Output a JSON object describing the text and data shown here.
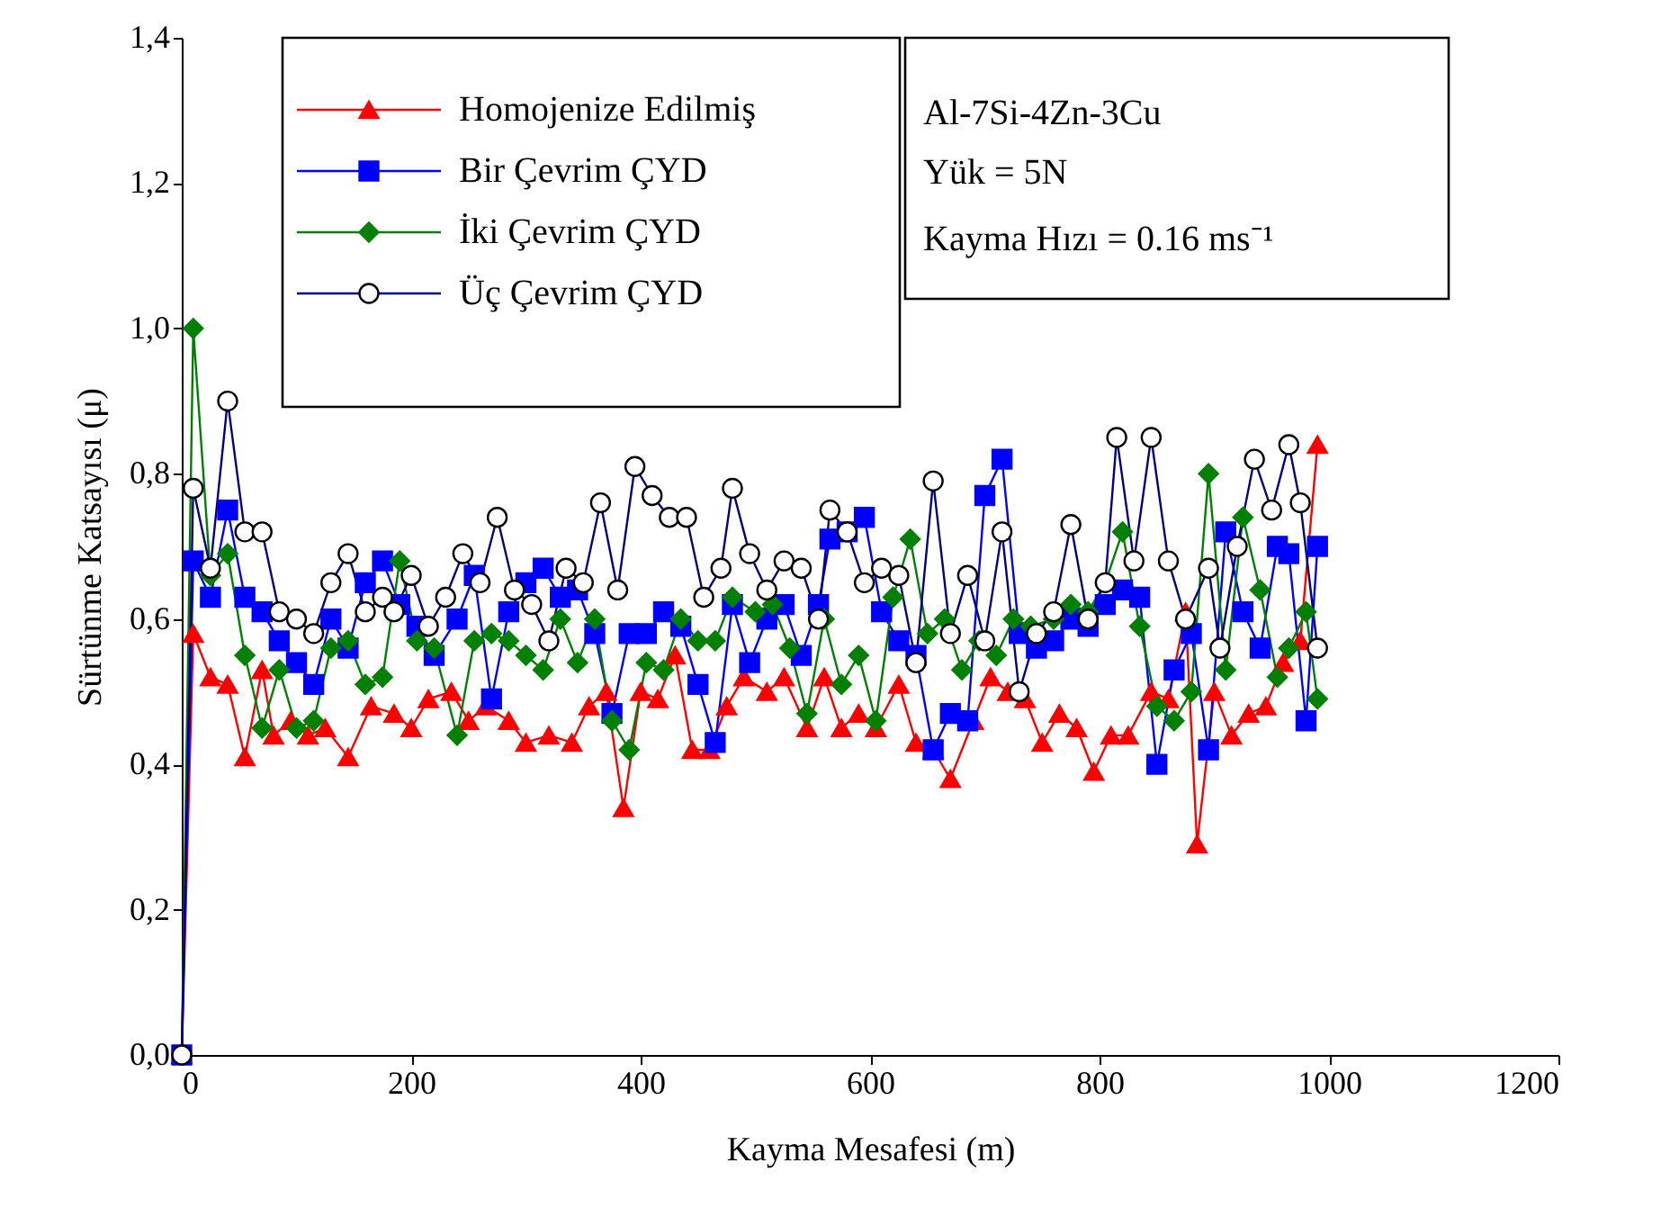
{
  "chart_data": {
    "type": "line",
    "xlabel": "Kayma Mesafesi (m)",
    "ylabel": "Sürtünme Katsayısı (μ)",
    "xlim": [
      0,
      1200
    ],
    "xticks": [
      0,
      200,
      400,
      600,
      800,
      {
        "value": 1000,
        "label": "1000"
      },
      {
        "value": 1200,
        "label": "1200"
      }
    ],
    "ylim": [
      0,
      1.4
    ],
    "yticks": [
      {
        "value": 0,
        "label": "0,0"
      },
      {
        "value": 0.2,
        "label": "0,2"
      },
      {
        "value": 0.4,
        "label": "0,4"
      },
      {
        "value": 0.6,
        "label": "0,6"
      },
      {
        "value": 0.8,
        "label": "0,8"
      },
      {
        "value": 1.0,
        "label": "1,0"
      },
      {
        "value": 1.2,
        "label": "1,2"
      },
      {
        "value": 1.4,
        "label": "1,4"
      }
    ],
    "grid": false,
    "legend": "top left",
    "line_style": "solid",
    "annotations": [
      "Al-7Si-4Zn-3Cu",
      "Yük = 5N",
      "Kayma Hızı = 0.16 ms⁻¹"
    ],
    "series": [
      {
        "name": "Homojenize Edilmiş",
        "color": "#ff0000",
        "marker": "triangle",
        "x": [
          0,
          10,
          25,
          40,
          55,
          70,
          80,
          95,
          110,
          125,
          145,
          165,
          185,
          200,
          215,
          235,
          250,
          265,
          285,
          300,
          320,
          340,
          355,
          370,
          385,
          400,
          415,
          430,
          445,
          460,
          475,
          490,
          510,
          525,
          545,
          560,
          575,
          590,
          605,
          625,
          640,
          655,
          670,
          690,
          705,
          720,
          735,
          750,
          765,
          780,
          795,
          810,
          825,
          845,
          860,
          875,
          885,
          900,
          915,
          930,
          945,
          960,
          975,
          990
        ],
        "values": [
          0,
          0.58,
          0.52,
          0.51,
          0.41,
          0.53,
          0.44,
          0.46,
          0.44,
          0.45,
          0.41,
          0.48,
          0.47,
          0.45,
          0.49,
          0.5,
          0.46,
          0.48,
          0.46,
          0.43,
          0.44,
          0.43,
          0.48,
          0.5,
          0.34,
          0.5,
          0.49,
          0.55,
          0.42,
          0.42,
          0.48,
          0.52,
          0.5,
          0.52,
          0.45,
          0.52,
          0.45,
          0.47,
          0.45,
          0.51,
          0.43,
          0.42,
          0.38,
          0.46,
          0.52,
          0.5,
          0.49,
          0.43,
          0.47,
          0.45,
          0.39,
          0.44,
          0.44,
          0.5,
          0.49,
          0.61,
          0.29,
          0.5,
          0.44,
          0.47,
          0.48,
          0.54,
          0.57,
          0.84
        ]
      },
      {
        "name": "Bir Çevrim ÇYD",
        "color": "#0000ff",
        "marker": "square",
        "x": [
          0,
          10,
          25,
          40,
          55,
          70,
          85,
          100,
          115,
          130,
          145,
          160,
          175,
          190,
          205,
          220,
          240,
          255,
          270,
          285,
          300,
          315,
          330,
          345,
          360,
          375,
          390,
          405,
          420,
          435,
          450,
          465,
          480,
          495,
          510,
          525,
          540,
          555,
          565,
          580,
          595,
          610,
          625,
          640,
          655,
          670,
          685,
          700,
          715,
          730,
          745,
          760,
          775,
          790,
          805,
          820,
          835,
          850,
          865,
          880,
          895,
          910,
          925,
          940,
          955,
          965,
          980,
          990
        ],
        "values": [
          0,
          0.68,
          0.63,
          0.75,
          0.63,
          0.61,
          0.57,
          0.54,
          0.51,
          0.6,
          0.56,
          0.65,
          0.68,
          0.62,
          0.59,
          0.55,
          0.6,
          0.66,
          0.49,
          0.61,
          0.65,
          0.67,
          0.63,
          0.64,
          0.58,
          0.47,
          0.58,
          0.58,
          0.61,
          0.59,
          0.51,
          0.43,
          0.62,
          0.54,
          0.6,
          0.62,
          0.55,
          0.62,
          0.71,
          0.72,
          0.74,
          0.61,
          0.57,
          0.55,
          0.42,
          0.47,
          0.46,
          0.77,
          0.82,
          0.58,
          0.56,
          0.57,
          0.6,
          0.59,
          0.62,
          0.64,
          0.63,
          0.4,
          0.53,
          0.58,
          0.42,
          0.72,
          0.61,
          0.56,
          0.7,
          0.69,
          0.46,
          0.7
        ]
      },
      {
        "name": "İki Çevrim ÇYD",
        "color": "#008000",
        "marker": "diamond",
        "x": [
          0,
          10,
          25,
          40,
          55,
          70,
          85,
          100,
          115,
          130,
          145,
          160,
          175,
          190,
          205,
          220,
          240,
          255,
          270,
          285,
          300,
          315,
          330,
          345,
          360,
          375,
          390,
          405,
          420,
          435,
          450,
          465,
          480,
          500,
          515,
          530,
          545,
          560,
          575,
          590,
          605,
          620,
          635,
          650,
          665,
          680,
          695,
          710,
          725,
          740,
          760,
          775,
          790,
          805,
          820,
          835,
          850,
          865,
          880,
          895,
          910,
          925,
          940,
          955,
          965,
          980,
          990
        ],
        "values": [
          0,
          1.0,
          0.66,
          0.69,
          0.55,
          0.45,
          0.53,
          0.45,
          0.46,
          0.56,
          0.57,
          0.51,
          0.52,
          0.68,
          0.57,
          0.56,
          0.44,
          0.57,
          0.58,
          0.57,
          0.55,
          0.53,
          0.6,
          0.54,
          0.6,
          0.46,
          0.42,
          0.54,
          0.53,
          0.6,
          0.57,
          0.57,
          0.63,
          0.61,
          0.62,
          0.56,
          0.47,
          0.6,
          0.51,
          0.55,
          0.46,
          0.63,
          0.71,
          0.58,
          0.6,
          0.53,
          0.57,
          0.55,
          0.6,
          0.59,
          0.6,
          0.62,
          0.61,
          0.65,
          0.72,
          0.59,
          0.48,
          0.46,
          0.5,
          0.8,
          0.53,
          0.74,
          0.64,
          0.52,
          0.56,
          0.61,
          0.49
        ]
      },
      {
        "name": "Üç Çevrim ÇYD",
        "color": "#000080",
        "marker": "circle",
        "x": [
          0,
          10,
          25,
          40,
          55,
          70,
          85,
          100,
          115,
          130,
          145,
          160,
          175,
          185,
          200,
          215,
          230,
          245,
          260,
          275,
          290,
          305,
          320,
          335,
          350,
          365,
          380,
          395,
          410,
          425,
          440,
          455,
          470,
          480,
          495,
          510,
          525,
          540,
          555,
          565,
          580,
          595,
          610,
          625,
          640,
          655,
          670,
          685,
          700,
          715,
          730,
          745,
          760,
          775,
          790,
          805,
          815,
          830,
          845,
          860,
          875,
          895,
          905,
          920,
          935,
          950,
          965,
          975,
          990
        ],
        "values": [
          0,
          0.78,
          0.67,
          0.9,
          0.72,
          0.72,
          0.61,
          0.6,
          0.58,
          0.65,
          0.69,
          0.61,
          0.63,
          0.61,
          0.66,
          0.59,
          0.63,
          0.69,
          0.65,
          0.74,
          0.64,
          0.62,
          0.57,
          0.67,
          0.65,
          0.76,
          0.64,
          0.81,
          0.77,
          0.74,
          0.74,
          0.63,
          0.67,
          0.78,
          0.69,
          0.64,
          0.68,
          0.67,
          0.6,
          0.75,
          0.72,
          0.65,
          0.67,
          0.66,
          0.54,
          0.79,
          0.58,
          0.66,
          0.57,
          0.72,
          0.5,
          0.58,
          0.61,
          0.73,
          0.6,
          0.65,
          0.85,
          0.68,
          0.85,
          0.68,
          0.6,
          0.67,
          0.56,
          0.7,
          0.82,
          0.75,
          0.84,
          0.76,
          0.56
        ]
      }
    ]
  }
}
